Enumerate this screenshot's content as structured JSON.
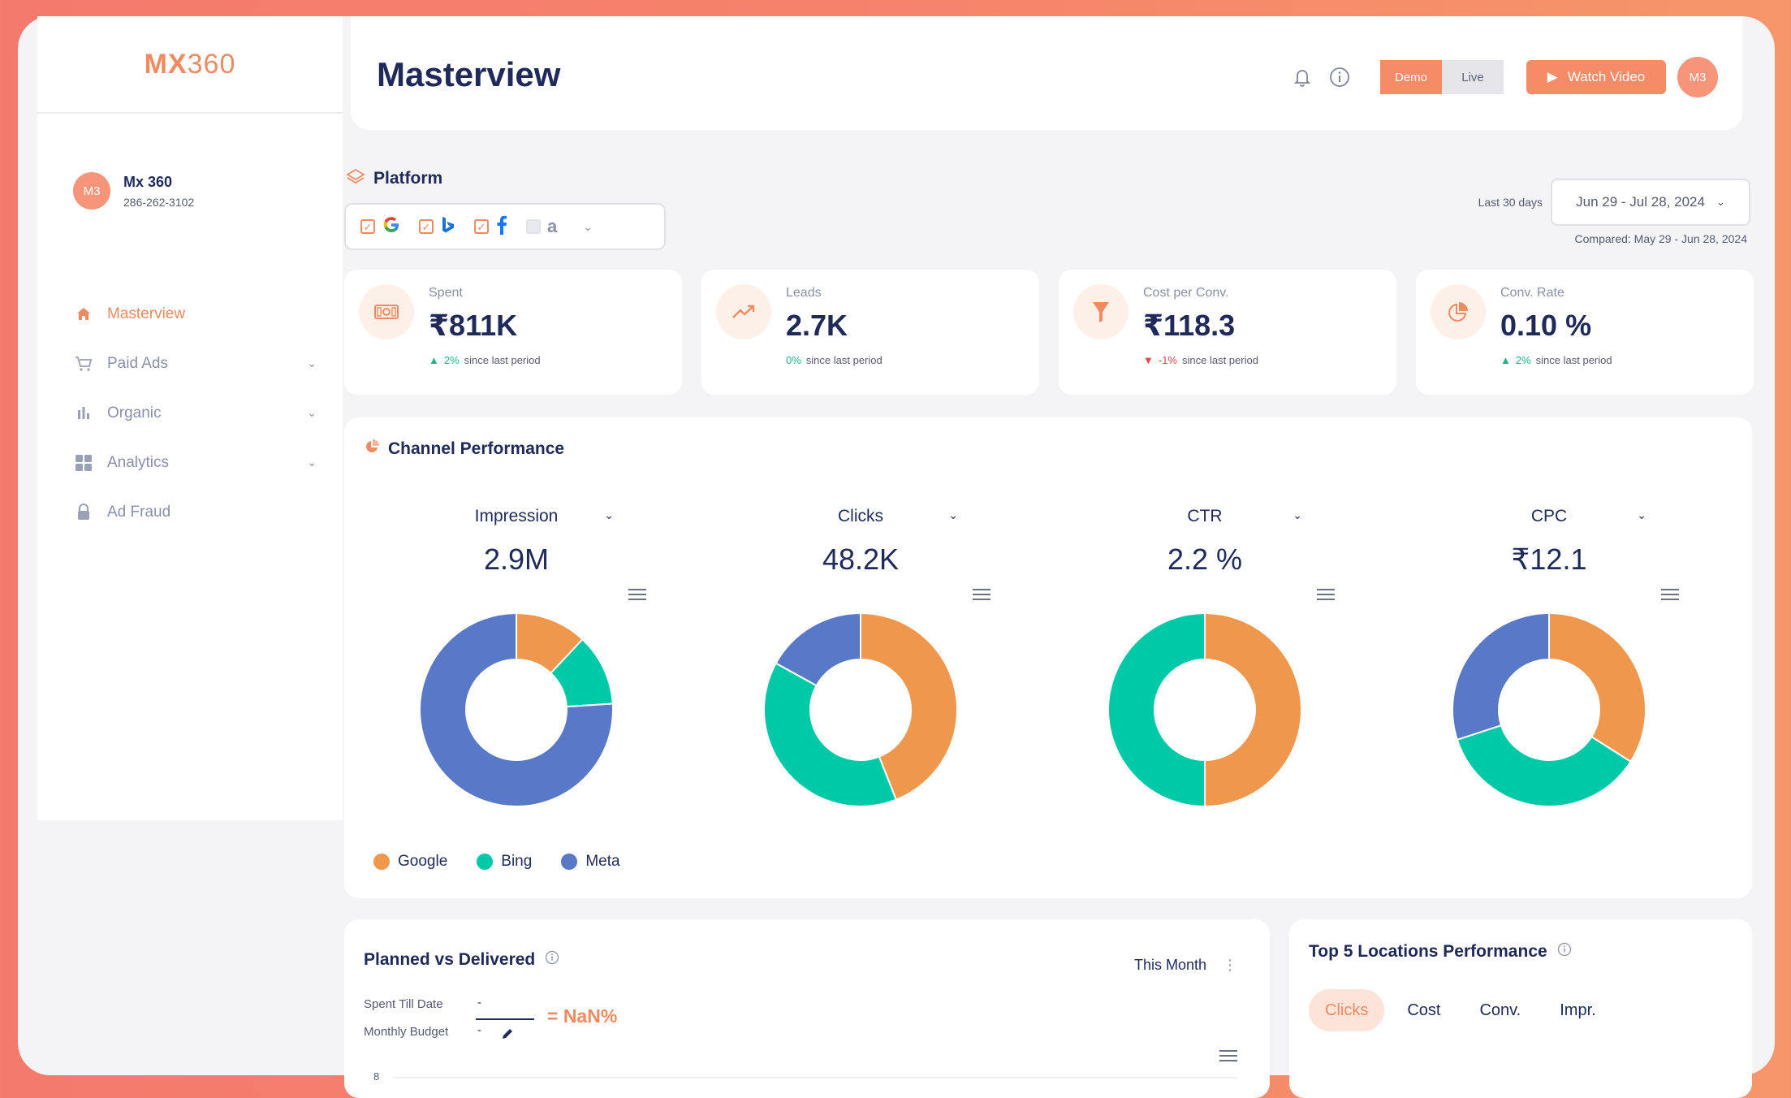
{
  "app": {
    "logo_bold": "MX",
    "logo_thin": "360"
  },
  "user": {
    "initials": "M3",
    "name": "Mx 360",
    "phone": "286-262-3102"
  },
  "sidebar": {
    "items": [
      {
        "label": "Masterview",
        "icon": "home-icon",
        "active": true
      },
      {
        "label": "Paid Ads",
        "icon": "cart-icon",
        "expandable": true
      },
      {
        "label": "Organic",
        "icon": "bar-chart-icon",
        "expandable": true
      },
      {
        "label": "Analytics",
        "icon": "grid-icon",
        "expandable": true
      },
      {
        "label": "Ad Fraud",
        "icon": "lock-icon"
      }
    ]
  },
  "header": {
    "title": "Masterview",
    "mode_demo": "Demo",
    "mode_live": "Live",
    "watch_video": "Watch Video",
    "avatar_initials": "M3"
  },
  "platform": {
    "label": "Platform",
    "options": [
      {
        "name": "Google",
        "checked": true
      },
      {
        "name": "Bing",
        "checked": true
      },
      {
        "name": "Facebook",
        "checked": true
      },
      {
        "name": "Amazon",
        "checked": false
      }
    ]
  },
  "date": {
    "range_label": "Last 30 days",
    "range": "Jun 29 - Jul 28, 2024",
    "compared": "Compared: May 29 - Jun 28, 2024"
  },
  "kpis": [
    {
      "label": "Spent",
      "value": "₹811K",
      "change": "2%",
      "trend": "up",
      "suffix": "since last period",
      "icon": "money-icon"
    },
    {
      "label": "Leads",
      "value": "2.7K",
      "change": "0%",
      "trend": "flat",
      "suffix": "since last period",
      "icon": "trend-up-icon"
    },
    {
      "label": "Cost per Conv.",
      "value": "₹118.3",
      "change": "-1%",
      "trend": "down",
      "suffix": "since last period",
      "icon": "funnel-icon"
    },
    {
      "label": "Conv. Rate",
      "value": "0.10 %",
      "change": "2%",
      "trend": "up",
      "suffix": "since last period",
      "icon": "pie-icon"
    }
  ],
  "channel": {
    "title": "Channel Performance",
    "legend": [
      {
        "name": "Google",
        "color": "#f0974e"
      },
      {
        "name": "Bing",
        "color": "#00c9a7"
      },
      {
        "name": "Meta",
        "color": "#5878c8"
      }
    ]
  },
  "chart_data": [
    {
      "type": "pie",
      "title": "Impression",
      "value_label": "2.9M",
      "categories": [
        "Google",
        "Bing",
        "Meta"
      ],
      "values": [
        12,
        12,
        76
      ]
    },
    {
      "type": "pie",
      "title": "Clicks",
      "value_label": "48.2K",
      "categories": [
        "Google",
        "Bing",
        "Meta"
      ],
      "values": [
        44,
        39,
        17
      ]
    },
    {
      "type": "pie",
      "title": "CTR",
      "value_label": "2.2 %",
      "categories": [
        "Google",
        "Bing",
        "Meta"
      ],
      "values": [
        50,
        50,
        0
      ]
    },
    {
      "type": "pie",
      "title": "CPC",
      "value_label": "₹12.1",
      "categories": [
        "Google",
        "Bing",
        "Meta"
      ],
      "values": [
        34,
        36,
        30
      ]
    }
  ],
  "planned": {
    "title": "Planned vs Delivered",
    "period": "This Month",
    "spent_label": "Spent Till Date",
    "budget_label": "Monthly Budget",
    "spent_value": "-",
    "budget_value": "-",
    "ratio": "= NaN%",
    "axis_tick": "8"
  },
  "locations": {
    "title": "Top 5 Locations Performance",
    "tabs": [
      "Clicks",
      "Cost",
      "Conv.",
      "Impr."
    ],
    "active_tab": "Clicks"
  }
}
